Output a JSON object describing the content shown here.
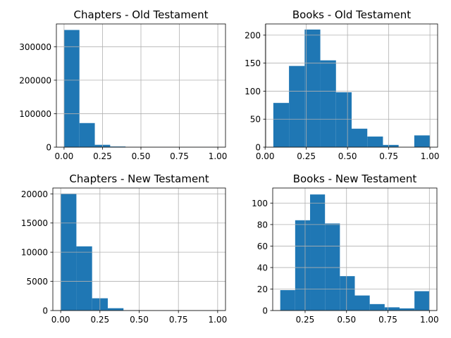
{
  "figure": {
    "background": "#ffffff",
    "bar_color": "#1f77b4",
    "grid_color": "#b0b0b0"
  },
  "chart_data": [
    {
      "type": "bar",
      "title": "Chapters - Old Testament",
      "xlim": [
        -0.05,
        1.05
      ],
      "ylim": [
        0,
        368000
      ],
      "xticks": [
        "0.00",
        "0.25",
        "0.50",
        "0.75",
        "1.00"
      ],
      "xtick_values": [
        0,
        0.25,
        0.5,
        0.75,
        1
      ],
      "yticks": [
        "0",
        "100000",
        "200000",
        "300000"
      ],
      "ytick_values": [
        0,
        100000,
        200000,
        300000
      ],
      "bin_edges": [
        0,
        0.1,
        0.2,
        0.3,
        0.4,
        0.5,
        0.6,
        0.7,
        0.8,
        0.9,
        1.0
      ],
      "values": [
        350000,
        72000,
        7000,
        2000,
        600,
        300,
        200,
        100,
        100,
        100
      ],
      "grid": true
    },
    {
      "type": "bar",
      "title": "Books - Old Testament",
      "xlim": [
        0.0035,
        1.0465
      ],
      "ylim": [
        0,
        220
      ],
      "xticks": [
        "0.00",
        "0.25",
        "0.50",
        "0.75",
        "1.00"
      ],
      "xtick_values": [
        0,
        0.25,
        0.5,
        0.75,
        1
      ],
      "yticks": [
        "0",
        "50",
        "100",
        "150",
        "200"
      ],
      "ytick_values": [
        0,
        50,
        100,
        150,
        200
      ],
      "bin_edges": [
        0.05,
        0.145,
        0.24,
        0.335,
        0.43,
        0.525,
        0.62,
        0.715,
        0.81,
        0.905,
        1.0
      ],
      "values": [
        79,
        145,
        210,
        155,
        98,
        33,
        19,
        4,
        0,
        21
      ],
      "grid": true
    },
    {
      "type": "bar",
      "title": "Chapters - New Testament",
      "xlim": [
        -0.05,
        1.05
      ],
      "ylim": [
        0,
        21000
      ],
      "xticks": [
        "0.00",
        "0.25",
        "0.50",
        "0.75",
        "1.00"
      ],
      "xtick_values": [
        0,
        0.25,
        0.5,
        0.75,
        1
      ],
      "yticks": [
        "0",
        "5000",
        "10000",
        "15000",
        "20000"
      ],
      "ytick_values": [
        0,
        5000,
        10000,
        15000,
        20000
      ],
      "bin_edges": [
        0,
        0.1,
        0.2,
        0.3,
        0.4,
        0.5,
        0.6,
        0.7,
        0.8,
        0.9,
        1.0
      ],
      "values": [
        20000,
        11000,
        2100,
        400,
        60,
        20,
        10,
        5,
        5,
        5
      ],
      "grid": true
    },
    {
      "type": "bar",
      "title": "Books - New Testament",
      "xlim": [
        0.0545,
        1.0455
      ],
      "ylim": [
        0,
        114
      ],
      "xticks": [
        "0.25",
        "0.50",
        "0.75",
        "1.00"
      ],
      "xtick_values": [
        0.25,
        0.5,
        0.75,
        1
      ],
      "yticks": [
        "0",
        "20",
        "40",
        "60",
        "80",
        "100"
      ],
      "ytick_values": [
        0,
        20,
        40,
        60,
        80,
        100
      ],
      "bin_edges": [
        0.1,
        0.19,
        0.28,
        0.37,
        0.46,
        0.55,
        0.64,
        0.73,
        0.82,
        0.91,
        1.0
      ],
      "values": [
        19,
        84,
        108,
        81,
        32,
        14,
        6,
        3,
        2,
        18
      ],
      "grid": true
    }
  ]
}
